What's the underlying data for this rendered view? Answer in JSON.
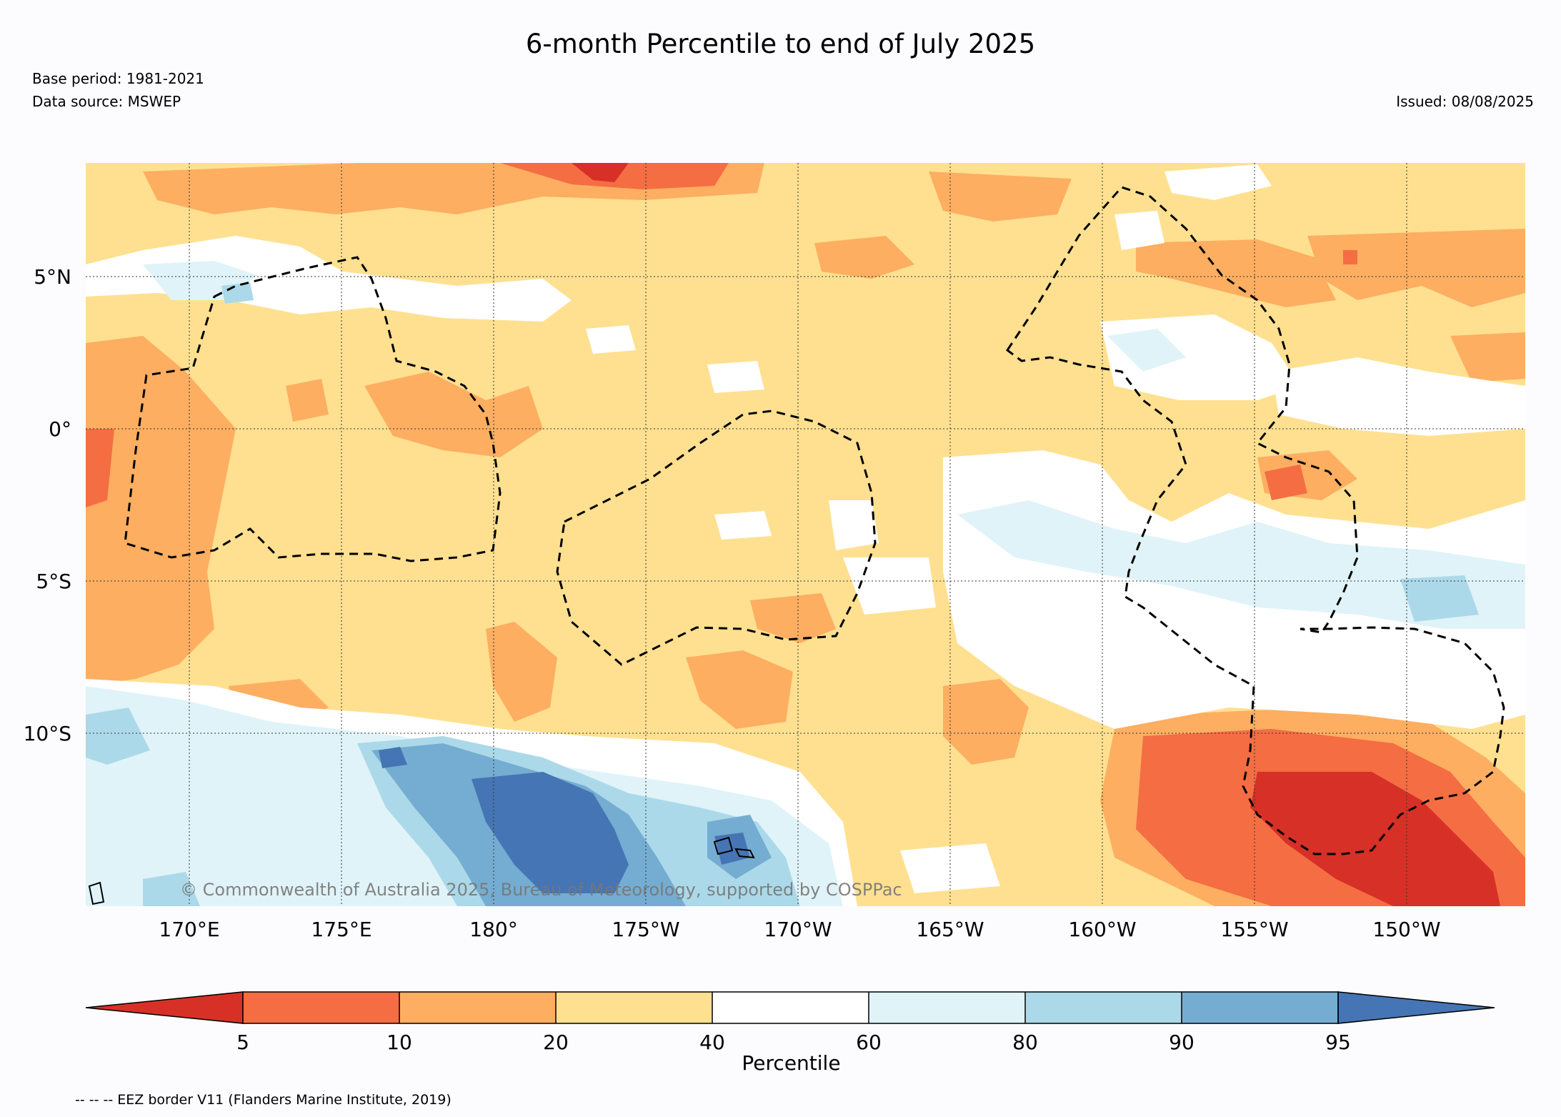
{
  "title": "6-month Percentile to end of July 2025",
  "base_period": "Base period: 1981-2021",
  "data_source": "Data source: MSWEP",
  "issued": "Issued: 08/08/2025",
  "copyright": "© Commonwealth of Australia 2025, Bureau of Meteorology, supported by COSPPac",
  "lat_labels": [
    "5°N",
    "0°",
    "5°S",
    "10°S"
  ],
  "lon_labels": [
    "170°E",
    "175°E",
    "180°",
    "175°W",
    "170°W",
    "165°W",
    "160°W",
    "155°W",
    "150°W"
  ],
  "colorbar": {
    "label": "Percentile",
    "ticks": [
      "5",
      "10",
      "20",
      "40",
      "60",
      "80",
      "90",
      "95"
    ],
    "colors": [
      "#d73027",
      "#f46d43",
      "#fdae61",
      "#fee090",
      "#ffffff",
      "#e0f3f8",
      "#abd9e9",
      "#74add1",
      "#4575b4"
    ]
  },
  "eez_note": "-- -- -- EEZ border V11 (Flanders Marine Institute, 2019)"
}
